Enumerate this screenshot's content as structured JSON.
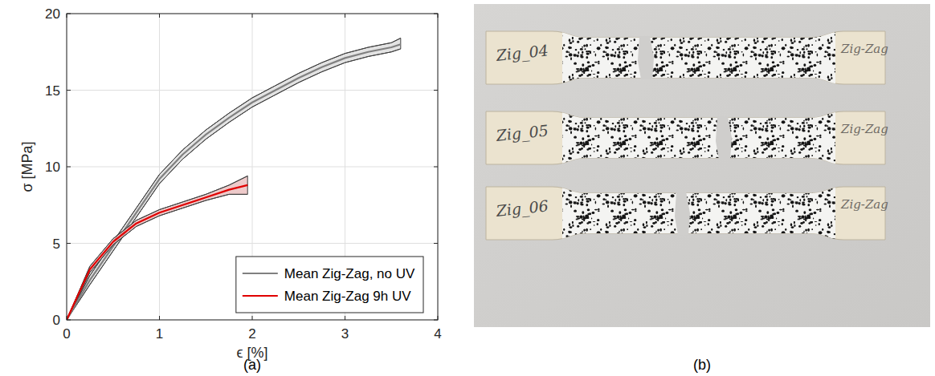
{
  "chart_data": {
    "type": "line",
    "panel_label": "(a)",
    "x_label": "ϵ [%]",
    "y_label": "σ [MPa]",
    "xlim": [
      0,
      4
    ],
    "ylim": [
      0,
      20
    ],
    "xticks": [
      0,
      1,
      2,
      3,
      4
    ],
    "yticks": [
      0,
      5,
      10,
      15,
      20
    ],
    "grid": true,
    "legend": "lower right",
    "series": [
      {
        "name": "Mean Zig-Zag, no UV",
        "color": "#808080",
        "x": [
          0,
          0.25,
          0.5,
          0.75,
          1,
          1.25,
          1.5,
          1.75,
          2,
          2.25,
          2.5,
          2.75,
          3,
          3.25,
          3.5,
          3.6
        ],
        "values": [
          0,
          2.6,
          4.8,
          7.0,
          9.2,
          10.8,
          12.1,
          13.2,
          14.2,
          15.0,
          15.8,
          16.5,
          17.1,
          17.5,
          17.8,
          18.0
        ],
        "lower": [
          0,
          2.3,
          4.5,
          6.7,
          8.9,
          10.5,
          11.8,
          12.9,
          13.9,
          14.7,
          15.5,
          16.2,
          16.8,
          17.2,
          17.5,
          17.7
        ],
        "upper": [
          0,
          2.9,
          5.1,
          7.3,
          9.5,
          11.1,
          12.4,
          13.5,
          14.5,
          15.3,
          16.1,
          16.8,
          17.4,
          17.8,
          18.1,
          18.4
        ]
      },
      {
        "name": "Mean Zig-Zag 9h UV",
        "color": "#e00000",
        "x": [
          0,
          0.25,
          0.5,
          0.75,
          1,
          1.25,
          1.5,
          1.75,
          1.95
        ],
        "values": [
          0,
          3.3,
          5.1,
          6.3,
          7.0,
          7.5,
          8.0,
          8.5,
          8.8
        ],
        "lower": [
          0,
          3.1,
          4.9,
          6.1,
          6.8,
          7.3,
          7.8,
          8.2,
          8.2
        ],
        "upper": [
          0,
          3.5,
          5.3,
          6.5,
          7.2,
          7.7,
          8.2,
          8.8,
          9.4
        ]
      }
    ]
  },
  "photo": {
    "panel_label": "(b)",
    "specimens": [
      {
        "left_label": "Zig_04",
        "right_label": "Zig-Zag"
      },
      {
        "left_label": "Zig_05",
        "right_label": "Zig-Zag"
      },
      {
        "left_label": "Zig_06",
        "right_label": "Zig-Zag"
      }
    ]
  }
}
